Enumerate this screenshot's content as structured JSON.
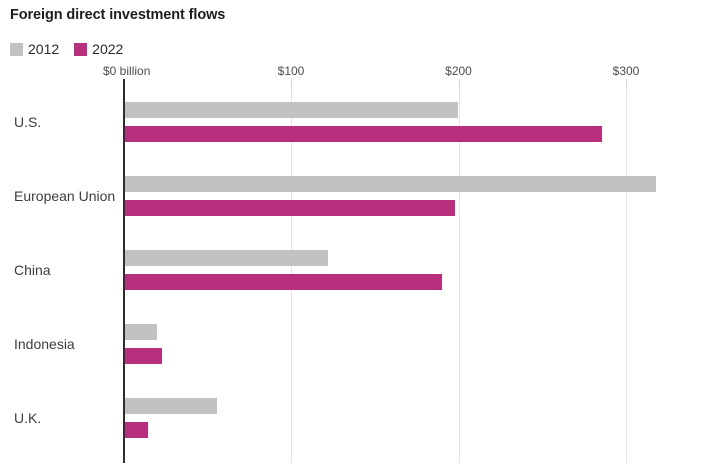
{
  "title": "Foreign direct investment flows",
  "legend": {
    "items": [
      {
        "label": "2012",
        "color": "#c2c2c2"
      },
      {
        "label": "2022",
        "color": "#b82f7d"
      }
    ]
  },
  "chart_data": {
    "type": "bar",
    "orientation": "horizontal",
    "title": "Foreign direct investment flows",
    "unit": "billion USD",
    "categories": [
      "U.S.",
      "European Union",
      "China",
      "Indonesia",
      "U.K."
    ],
    "series": [
      {
        "name": "2012",
        "color": "#c2c2c2",
        "values": [
          199,
          317,
          121,
          19,
          55
        ]
      },
      {
        "name": "2022",
        "color": "#b82f7d",
        "values": [
          285,
          197,
          189,
          22,
          14
        ]
      }
    ],
    "x_axis": {
      "tick_labels": [
        "$0 billion",
        "$100",
        "$200",
        "$300"
      ],
      "tick_values": [
        0,
        100,
        200,
        300
      ],
      "range": [
        0,
        340
      ]
    },
    "grid": "vertical",
    "legend_position": "top-left"
  }
}
